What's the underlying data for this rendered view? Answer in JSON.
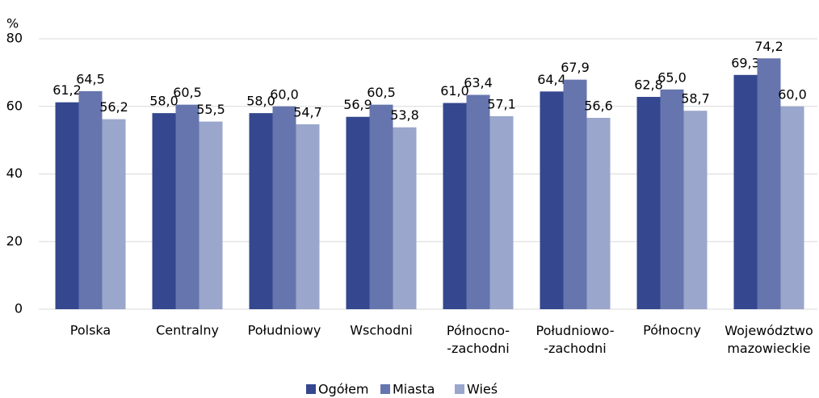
{
  "chart_data": {
    "type": "bar",
    "y_label": "%",
    "categories": [
      "Polska",
      "Centralny",
      "Południowy",
      "Wschodni",
      "Północno-\n-zachodni",
      "Południowo-\n-zachodni",
      "Północny",
      "Województwo\nmazowieckie"
    ],
    "series": [
      {
        "name": "Ogółem",
        "color": "#34478f",
        "values": [
          61.2,
          58.0,
          58.0,
          56.9,
          61.0,
          64.4,
          62.8,
          69.3
        ],
        "value_labels": [
          "61,2",
          "58,0",
          "58,0",
          "56,9",
          "61,0",
          "64,4",
          "62,8",
          "69,3"
        ]
      },
      {
        "name": "Miasta",
        "color": "#6675ad",
        "values": [
          64.5,
          60.5,
          60.0,
          60.5,
          63.4,
          67.9,
          65.0,
          74.2
        ],
        "value_labels": [
          "64,5",
          "60,5",
          "60,0",
          "60,5",
          "63,4",
          "67,9",
          "65,0",
          "74,2"
        ]
      },
      {
        "name": "Wieś",
        "color": "#9aa6cc",
        "values": [
          56.2,
          55.5,
          54.7,
          53.8,
          57.1,
          56.6,
          58.7,
          60.0
        ],
        "value_labels": [
          "56,2",
          "55,5",
          "54,7",
          "53,8",
          "57,1",
          "56,6",
          "58,7",
          "60,0"
        ]
      }
    ],
    "ylim": [
      0,
      80
    ],
    "yticks": [
      0,
      20,
      40,
      60,
      80
    ],
    "grid": true,
    "legend": "bottom"
  }
}
